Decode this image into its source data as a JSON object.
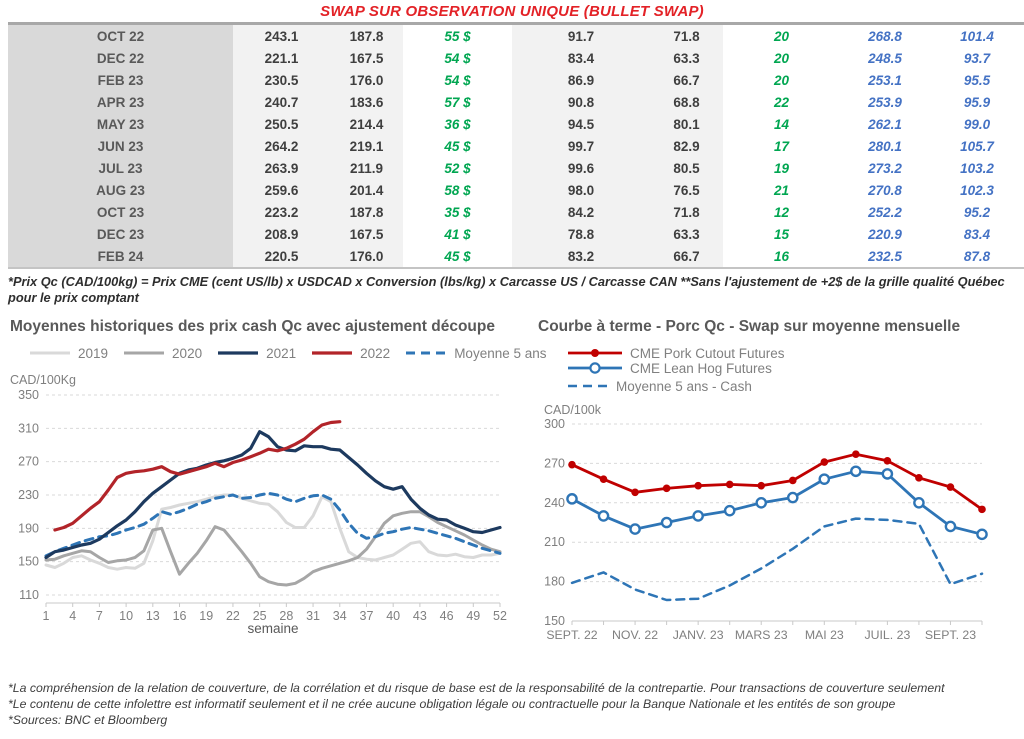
{
  "page": {
    "title": "SWAP SUR OBSERVATION UNIQUE (BULLET SWAP)",
    "table_footnote": "*Prix Qc (CAD/100kg) = Prix CME (cent US/lb) x USDCAD x Conversion (lbs/kg) x Carcasse US / Carcasse CAN **Sans l'ajustement de +2$ de la grille qualité Québec pour le prix comptant",
    "footer_notes": [
      "*La compréhension de la relation de couverture, de la corrélation et du risque de base est de la responsabilité de la contrepartie. Pour transactions de couverture seulement",
      "*Le contenu de cette infolettre est informatif seulement et il ne crée aucune obligation légale ou contractuelle pour la Banque Nationale et les entités de son groupe",
      "*Sources: BNC et Bloomberg"
    ]
  },
  "colors": {
    "title_red": "#e32227",
    "table_green": "#00a651",
    "table_blue": "#4472c4",
    "gray_2019": "#d9d9d9",
    "gray_2020": "#a6a6a6",
    "navy_2021": "#1d3a5f",
    "red_2022": "#b22429",
    "blue_average": "#2e75b6",
    "pork_red": "#c00000"
  },
  "table": {
    "rows": [
      [
        "OCT 22",
        "243.1",
        "187.8",
        "55 $",
        "91.7",
        "71.8",
        "20",
        "268.8",
        "101.4"
      ],
      [
        "DEC 22",
        "221.1",
        "167.5",
        "54 $",
        "83.4",
        "63.3",
        "20",
        "248.5",
        "93.7"
      ],
      [
        "FEB 23",
        "230.5",
        "176.0",
        "54 $",
        "86.9",
        "66.7",
        "20",
        "253.1",
        "95.5"
      ],
      [
        "APR 23",
        "240.7",
        "183.6",
        "57 $",
        "90.8",
        "68.8",
        "22",
        "253.9",
        "95.9"
      ],
      [
        "MAY 23",
        "250.5",
        "214.4",
        "36 $",
        "94.5",
        "80.1",
        "14",
        "262.1",
        "99.0"
      ],
      [
        "JUN 23",
        "264.2",
        "219.1",
        "45 $",
        "99.7",
        "82.9",
        "17",
        "280.1",
        "105.7"
      ],
      [
        "JUL 23",
        "263.9",
        "211.9",
        "52 $",
        "99.6",
        "80.5",
        "19",
        "273.2",
        "103.2"
      ],
      [
        "AUG 23",
        "259.6",
        "201.4",
        "58 $",
        "98.0",
        "76.5",
        "21",
        "270.8",
        "102.3"
      ],
      [
        "OCT 23",
        "223.2",
        "187.8",
        "35 $",
        "84.2",
        "71.8",
        "12",
        "252.2",
        "95.2"
      ],
      [
        "DEC 23",
        "208.9",
        "167.5",
        "41 $",
        "78.8",
        "63.3",
        "15",
        "220.9",
        "83.4"
      ],
      [
        "FEB 24",
        "220.5",
        "176.0",
        "45 $",
        "83.2",
        "66.7",
        "16",
        "232.5",
        "87.8"
      ]
    ]
  },
  "chart_data": [
    {
      "type": "line",
      "title": "Moyennes historiques des prix cash Qc avec ajustement découpe",
      "unit_label": "CAD/100Kg",
      "xlabel": "semaine",
      "ylim": [
        110,
        350
      ],
      "y_ticks": [
        110,
        150,
        190,
        230,
        270,
        310,
        350
      ],
      "x_domain": [
        1,
        52
      ],
      "x_ticks": [
        1,
        4,
        7,
        10,
        13,
        16,
        19,
        22,
        25,
        28,
        31,
        34,
        37,
        40,
        43,
        46,
        49,
        52
      ],
      "grid": "dashed",
      "legend_position": "top",
      "axis_offset": 8,
      "draw_order": [
        0,
        1,
        4,
        2,
        3
      ],
      "series": [
        {
          "name": "2019",
          "color": "#d9d9d9",
          "style": "solid",
          "width": 3,
          "x_start": 1,
          "values": [
            146,
            143,
            148,
            155,
            157,
            152,
            148,
            143,
            141,
            143,
            142,
            148,
            175,
            213,
            215,
            218,
            220,
            222,
            225,
            228,
            230,
            230,
            226,
            223,
            220,
            219,
            210,
            197,
            191,
            191,
            205,
            228,
            222,
            190,
            162,
            155,
            153,
            152,
            155,
            158,
            165,
            172,
            174,
            162,
            158,
            157,
            159,
            156,
            155,
            158,
            158,
            160
          ]
        },
        {
          "name": "2020",
          "color": "#a6a6a6",
          "style": "solid",
          "width": 3,
          "x_start": 1,
          "values": [
            152,
            153,
            157,
            160,
            163,
            162,
            155,
            149,
            151,
            152,
            155,
            163,
            188,
            190,
            162,
            135,
            148,
            160,
            175,
            192,
            188,
            175,
            162,
            148,
            132,
            126,
            123,
            122,
            124,
            130,
            138,
            142,
            145,
            148,
            151,
            155,
            165,
            180,
            196,
            205,
            208,
            210,
            210,
            204,
            197,
            192,
            187,
            182,
            176,
            170,
            165,
            162
          ]
        },
        {
          "name": "2021",
          "color": "#1d3a5f",
          "style": "solid",
          "width": 3.2,
          "x_start": 1,
          "values": [
            155,
            162,
            164,
            167,
            170,
            172,
            177,
            185,
            193,
            200,
            210,
            222,
            232,
            240,
            248,
            256,
            260,
            262,
            266,
            269,
            271,
            274,
            278,
            286,
            306,
            300,
            288,
            284,
            283,
            289,
            288,
            288,
            285,
            284,
            275,
            266,
            256,
            247,
            240,
            237,
            240,
            225,
            214,
            206,
            201,
            200,
            194,
            190,
            186,
            185,
            188,
            191
          ]
        },
        {
          "name": "2022",
          "color": "#b22429",
          "style": "solid",
          "width": 3.2,
          "x_start": 2,
          "values": [
            188,
            191,
            196,
            205,
            214,
            222,
            236,
            251,
            256,
            258,
            259,
            261,
            264,
            258,
            255,
            258,
            261,
            264,
            268,
            264,
            269,
            272,
            276,
            280,
            285,
            283,
            286,
            291,
            297,
            306,
            314,
            317,
            318
          ]
        },
        {
          "name": "Moyenne 5 ans",
          "color": "#2e75b6",
          "style": "dashed",
          "width": 3,
          "x_start": 1,
          "values": [
            157,
            162,
            166,
            170,
            174,
            177,
            180,
            181,
            184,
            188,
            191,
            195,
            202,
            210,
            207,
            210,
            214,
            219,
            222,
            226,
            228,
            230,
            226,
            227,
            230,
            232,
            230,
            225,
            222,
            226,
            229,
            230,
            225,
            212,
            196,
            184,
            178,
            180,
            184,
            186,
            189,
            191,
            189,
            187,
            184,
            181,
            178,
            174,
            170,
            166,
            163,
            160
          ]
        }
      ]
    },
    {
      "type": "line",
      "title": "Courbe à terme - Porc Qc - Swap sur moyenne mensuelle",
      "unit_label": "CAD/100k",
      "xlabel": "",
      "ylim": [
        150,
        300
      ],
      "y_ticks": [
        150,
        180,
        210,
        240,
        270,
        300
      ],
      "x_domain": [
        0,
        13
      ],
      "x_ticklabels": [
        "SEPT. 22",
        "NOV. 22",
        "JANV. 23",
        "MARS 23",
        "MAI 23",
        "JUIL. 23",
        "SEPT. 23"
      ],
      "x_ticklabel_positions": [
        0,
        2,
        4,
        6,
        8,
        10,
        12
      ],
      "x_minor_every": 1,
      "grid": "dashed",
      "legend_position": "top",
      "axis_offset": 0,
      "draw_order": [
        2,
        0,
        1
      ],
      "series": [
        {
          "name": "CME Pork Cutout Futures",
          "color": "#c00000",
          "style": "solid",
          "width": 2.8,
          "marker": "circle-filled",
          "x_start": 0,
          "values": [
            269,
            258,
            248,
            251,
            253,
            254,
            253,
            257,
            271,
            277,
            272,
            259,
            252,
            235
          ]
        },
        {
          "name": "CME Lean Hog Futures",
          "color": "#2e75b6",
          "style": "solid",
          "width": 2.8,
          "marker": "circle-open",
          "x_start": 0,
          "values": [
            243,
            230,
            220,
            225,
            230,
            234,
            240,
            244,
            258,
            264,
            262,
            240,
            222,
            216
          ]
        },
        {
          "name": "Moyenne 5 ans - Cash",
          "color": "#2e75b6",
          "style": "dashed",
          "width": 2.5,
          "x_start": 0,
          "values": [
            179,
            187,
            174,
            166,
            167,
            177,
            190,
            205,
            222,
            228,
            227,
            224,
            178,
            186
          ]
        }
      ]
    }
  ]
}
